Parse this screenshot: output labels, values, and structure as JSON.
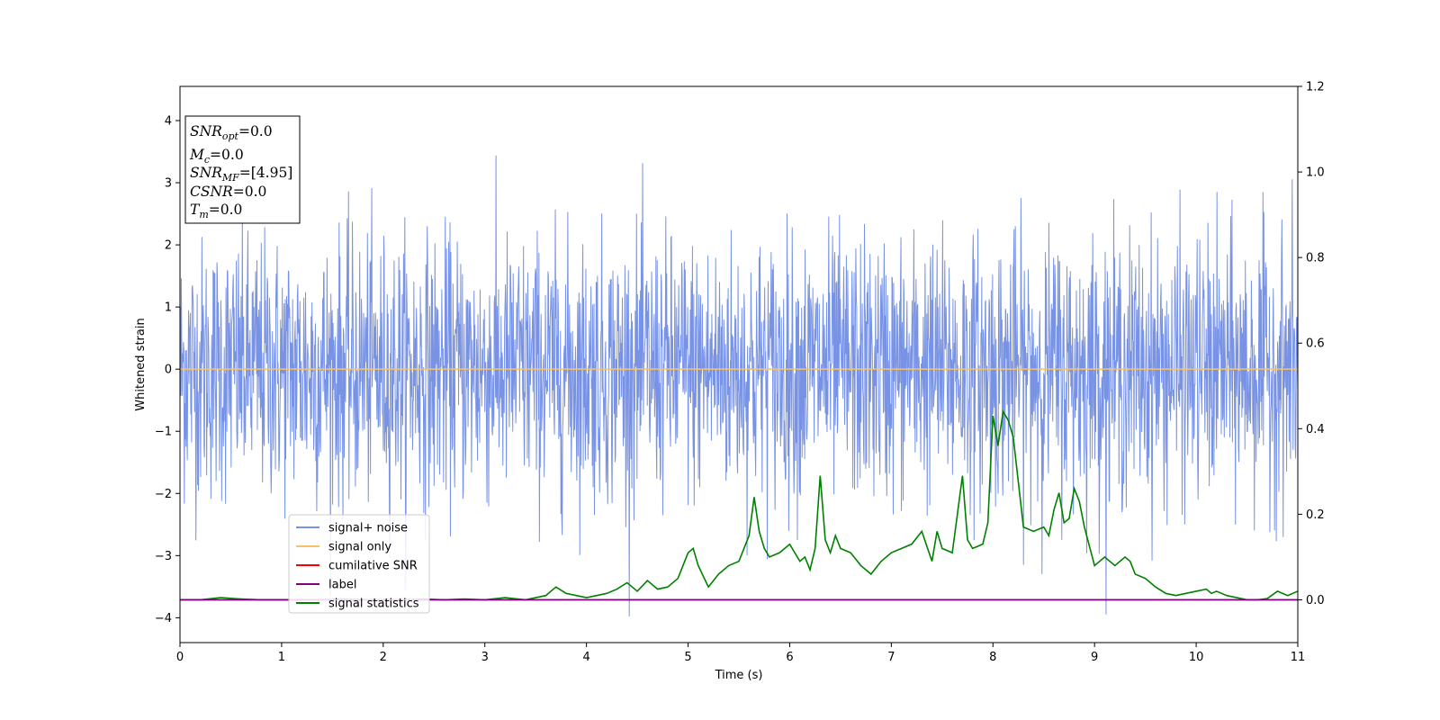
{
  "chart_data": {
    "type": "line",
    "xlabel": "Time (s)",
    "ylabel": "Whitened strain",
    "xlim": [
      0,
      11
    ],
    "ylim": [
      -4.4,
      4.55
    ],
    "y2lim": [
      -0.1,
      1.2
    ],
    "xticks": [
      0,
      1,
      2,
      3,
      4,
      5,
      6,
      7,
      8,
      9,
      10,
      11
    ],
    "yticks": [
      -4,
      -3,
      -2,
      -1,
      0,
      1,
      2,
      3,
      4
    ],
    "y2ticks": [
      "0.0",
      "0.2",
      "0.4",
      "0.6",
      "0.8",
      "1.0",
      "1.2"
    ],
    "grid": false,
    "legend_placement": "lower-left",
    "series": [
      {
        "name": "signal+ noise",
        "color": "#7893e6",
        "axis": "left",
        "description_values": {
          "typical_range": [
            -2.5,
            2.5
          ],
          "max": 4.17,
          "min": -3.98
        }
      },
      {
        "name": "signal only",
        "color": "#f5c26b",
        "axis": "left",
        "constant": 0.0
      },
      {
        "name": "cumilative SNR",
        "color": "#ff0000",
        "axis": "right",
        "constant": 0.0
      },
      {
        "name": "label",
        "color": "#800080",
        "axis": "right",
        "constant": 0.0
      },
      {
        "name": "signal statistics",
        "color": "#008000",
        "axis": "right",
        "x": [
          0.0,
          0.2,
          0.4,
          0.6,
          0.8,
          1.0,
          1.2,
          1.4,
          1.6,
          1.8,
          2.0,
          2.2,
          2.4,
          2.6,
          2.8,
          3.0,
          3.2,
          3.4,
          3.6,
          3.7,
          3.8,
          3.9,
          4.0,
          4.1,
          4.2,
          4.3,
          4.4,
          4.5,
          4.6,
          4.7,
          4.8,
          4.9,
          5.0,
          5.05,
          5.1,
          5.2,
          5.3,
          5.4,
          5.5,
          5.6,
          5.65,
          5.7,
          5.75,
          5.8,
          5.9,
          6.0,
          6.1,
          6.15,
          6.2,
          6.25,
          6.3,
          6.35,
          6.4,
          6.45,
          6.5,
          6.6,
          6.7,
          6.8,
          6.9,
          7.0,
          7.1,
          7.2,
          7.3,
          7.4,
          7.45,
          7.5,
          7.6,
          7.7,
          7.75,
          7.8,
          7.9,
          7.95,
          8.0,
          8.05,
          8.1,
          8.15,
          8.2,
          8.3,
          8.4,
          8.5,
          8.55,
          8.6,
          8.65,
          8.7,
          8.75,
          8.8,
          8.85,
          8.9,
          9.0,
          9.1,
          9.2,
          9.3,
          9.35,
          9.4,
          9.5,
          9.6,
          9.7,
          9.8,
          9.9,
          10.0,
          10.1,
          10.15,
          10.2,
          10.3,
          10.4,
          10.5,
          10.6,
          10.7,
          10.8,
          10.9,
          11.0
        ],
        "values": [
          0.0,
          0.0,
          0.005,
          0.002,
          0.0,
          0.0,
          0.0,
          0.0,
          0.002,
          0.0,
          0.0,
          0.0,
          0.002,
          0.0,
          0.002,
          0.0,
          0.005,
          0.0,
          0.01,
          0.03,
          0.015,
          0.01,
          0.005,
          0.01,
          0.015,
          0.025,
          0.04,
          0.02,
          0.045,
          0.025,
          0.03,
          0.05,
          0.11,
          0.12,
          0.08,
          0.03,
          0.06,
          0.08,
          0.09,
          0.15,
          0.24,
          0.16,
          0.12,
          0.1,
          0.11,
          0.13,
          0.09,
          0.1,
          0.07,
          0.12,
          0.29,
          0.14,
          0.11,
          0.15,
          0.12,
          0.11,
          0.08,
          0.06,
          0.09,
          0.11,
          0.12,
          0.13,
          0.16,
          0.09,
          0.16,
          0.12,
          0.11,
          0.29,
          0.14,
          0.12,
          0.13,
          0.18,
          0.43,
          0.36,
          0.44,
          0.42,
          0.38,
          0.17,
          0.16,
          0.17,
          0.15,
          0.21,
          0.25,
          0.18,
          0.19,
          0.26,
          0.23,
          0.17,
          0.08,
          0.1,
          0.08,
          0.1,
          0.09,
          0.06,
          0.05,
          0.03,
          0.015,
          0.01,
          0.015,
          0.02,
          0.025,
          0.015,
          0.02,
          0.01,
          0.005,
          0.0,
          0.0,
          0.003,
          0.02,
          0.01,
          0.02
        ]
      }
    ],
    "annotation_box": [
      {
        "base": "SNR",
        "sub": "opt",
        "value": "=0.0"
      },
      {
        "base": "M",
        "sub": "c",
        "value": "=0.0"
      },
      {
        "base": "SNR",
        "sub": "MF",
        "value": "=[4.95]"
      },
      {
        "base": "CSNR",
        "sub": "",
        "value": "=0.0"
      },
      {
        "base": "T",
        "sub": "m",
        "value": "=0.0"
      }
    ]
  }
}
